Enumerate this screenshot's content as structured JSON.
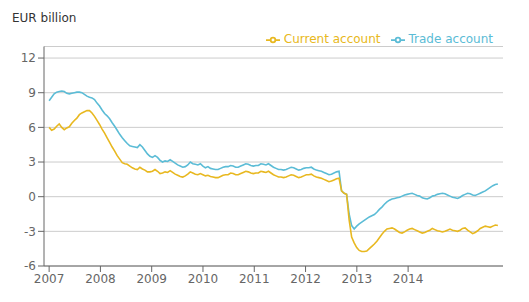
{
  "chart_data": {
    "type": "line",
    "ylabel": "EUR billion",
    "x": [
      2007,
      2007.0492,
      2007.0983,
      2007.1475,
      2007.1966,
      2007.2458,
      2007.2949,
      2007.3441,
      2007.3933,
      2007.4424,
      2007.4916,
      2007.5407,
      2007.5899,
      2007.639,
      2007.6882,
      2007.7374,
      2007.7865,
      2007.8357,
      2007.8848,
      2007.934,
      2007.9831,
      2008.0323,
      2008.0815,
      2008.1306,
      2008.1798,
      2008.2289,
      2008.2781,
      2008.3272,
      2008.3764,
      2008.4256,
      2008.4747,
      2008.5239,
      2008.573,
      2008.6222,
      2008.6713,
      2008.7205,
      2008.7697,
      2008.8188,
      2008.868,
      2008.9171,
      2008.9663,
      2009.0154,
      2009.0646,
      2009.1138,
      2009.1629,
      2009.2121,
      2009.2612,
      2009.3104,
      2009.3596,
      2009.4087,
      2009.4579,
      2009.507,
      2009.5562,
      2009.6053,
      2009.6545,
      2009.7037,
      2009.7528,
      2009.802,
      2009.8511,
      2009.9003,
      2009.9494,
      2009.9986,
      2010.0478,
      2010.0969,
      2010.1461,
      2010.1952,
      2010.2444,
      2010.2935,
      2010.3427,
      2010.3919,
      2010.441,
      2010.4902,
      2010.5393,
      2010.5885,
      2010.6376,
      2010.6868,
      2010.736,
      2010.7851,
      2010.8343,
      2010.8834,
      2010.9326,
      2010.9817,
      2011.0309,
      2011.0801,
      2011.1292,
      2011.1784,
      2011.2275,
      2011.2767,
      2011.3258,
      2011.375,
      2011.4242,
      2011.4733,
      2011.5225,
      2011.5716,
      2011.6208,
      2011.6699,
      2011.7191,
      2011.7683,
      2011.8174,
      2011.8666,
      2011.9157,
      2011.9649,
      2012.014,
      2012.0632,
      2012.1124,
      2012.1615,
      2012.2107,
      2012.2598,
      2012.309,
      2012.3581,
      2012.4073,
      2012.4565,
      2012.5056,
      2012.5548,
      2012.6039,
      2012.6531,
      2012.7022,
      2012.7514,
      2012.8006,
      2012.8497,
      2012.8989,
      2012.948,
      2012.9972,
      2013.0463,
      2013.0955,
      2013.1447,
      2013.1938,
      2013.243,
      2013.2921,
      2013.3413,
      2013.3904,
      2013.4396,
      2013.4888,
      2013.5379,
      2013.5871,
      2013.6362,
      2013.6854,
      2013.7346,
      2013.7837,
      2013.8329,
      2013.882,
      2013.9312,
      2013.9803,
      2014.0295,
      2014.0787,
      2014.1278,
      2014.177,
      2014.2261,
      2014.2753,
      2014.3244,
      2014.3736,
      2014.4228,
      2014.4719,
      2014.5211,
      2014.5702,
      2014.6194,
      2014.6685,
      2014.7177,
      2014.7669,
      2014.816,
      2014.8652,
      2014.9143,
      2014.9635,
      2015.0126,
      2015.0618,
      2015.111,
      2015.1601,
      2015.2093,
      2015.2584,
      2015.3076,
      2015.3567,
      2015.4059,
      2015.4551,
      2015.5042,
      2015.5534,
      2015.6025,
      2015.6517,
      2015.7008,
      2015.75
    ],
    "series": [
      {
        "name": "Trade account",
        "color": "#5BBCD6",
        "values": [
          8.3,
          8.6,
          8.9,
          9.05,
          9.1,
          9.15,
          9.1,
          8.95,
          8.9,
          8.95,
          9.0,
          9.05,
          9.05,
          9.0,
          8.85,
          8.7,
          8.6,
          8.55,
          8.4,
          8.1,
          7.85,
          7.5,
          7.2,
          7.0,
          6.75,
          6.4,
          6.1,
          5.75,
          5.4,
          5.1,
          4.85,
          4.6,
          4.4,
          4.35,
          4.3,
          4.25,
          4.5,
          4.3,
          4.0,
          3.7,
          3.5,
          3.4,
          3.55,
          3.4,
          3.15,
          3.0,
          3.1,
          3.05,
          3.2,
          3.05,
          2.9,
          2.75,
          2.65,
          2.55,
          2.6,
          2.75,
          3.0,
          2.85,
          2.8,
          2.75,
          2.85,
          2.65,
          2.5,
          2.6,
          2.45,
          2.4,
          2.35,
          2.35,
          2.45,
          2.55,
          2.6,
          2.6,
          2.7,
          2.65,
          2.55,
          2.55,
          2.65,
          2.75,
          2.85,
          2.8,
          2.7,
          2.65,
          2.7,
          2.7,
          2.85,
          2.8,
          2.75,
          2.85,
          2.7,
          2.55,
          2.45,
          2.35,
          2.35,
          2.3,
          2.35,
          2.45,
          2.55,
          2.5,
          2.4,
          2.3,
          2.35,
          2.45,
          2.5,
          2.5,
          2.55,
          2.4,
          2.3,
          2.25,
          2.2,
          2.1,
          2.0,
          1.9,
          1.95,
          2.05,
          2.15,
          2.2,
          0.5,
          0.3,
          0.2,
          -1.5,
          -2.5,
          -2.8,
          -2.55,
          -2.35,
          -2.2,
          -2.05,
          -1.9,
          -1.75,
          -1.65,
          -1.55,
          -1.35,
          -1.1,
          -0.9,
          -0.65,
          -0.45,
          -0.3,
          -0.2,
          -0.15,
          -0.1,
          -0.05,
          0.05,
          0.15,
          0.2,
          0.25,
          0.3,
          0.2,
          0.1,
          0.05,
          -0.1,
          -0.15,
          -0.2,
          -0.1,
          0.05,
          0.1,
          0.2,
          0.25,
          0.3,
          0.25,
          0.15,
          0.05,
          -0.05,
          -0.1,
          -0.15,
          -0.05,
          0.1,
          0.2,
          0.3,
          0.25,
          0.15,
          0.1,
          0.2,
          0.3,
          0.4,
          0.5,
          0.65,
          0.8,
          0.95,
          1.05,
          1.1
        ]
      },
      {
        "name": "Current account",
        "color": "#E8B820",
        "values": [
          6.0,
          5.75,
          5.85,
          6.1,
          6.3,
          6.0,
          5.8,
          5.95,
          6.05,
          6.35,
          6.6,
          6.8,
          7.1,
          7.25,
          7.35,
          7.45,
          7.45,
          7.25,
          6.95,
          6.6,
          6.25,
          5.85,
          5.5,
          5.1,
          4.7,
          4.3,
          3.95,
          3.55,
          3.25,
          2.95,
          2.85,
          2.8,
          2.65,
          2.5,
          2.4,
          2.35,
          2.55,
          2.4,
          2.3,
          2.15,
          2.15,
          2.2,
          2.35,
          2.2,
          2.0,
          2.05,
          2.15,
          2.1,
          2.25,
          2.1,
          1.95,
          1.85,
          1.75,
          1.7,
          1.8,
          1.95,
          2.15,
          2.05,
          1.95,
          1.9,
          2.0,
          1.9,
          1.8,
          1.85,
          1.75,
          1.7,
          1.65,
          1.65,
          1.75,
          1.85,
          1.9,
          1.9,
          2.05,
          2.0,
          1.9,
          1.9,
          2.0,
          2.1,
          2.2,
          2.15,
          2.05,
          2.0,
          2.05,
          2.05,
          2.2,
          2.15,
          2.1,
          2.2,
          2.05,
          1.9,
          1.8,
          1.7,
          1.7,
          1.65,
          1.7,
          1.8,
          1.9,
          1.85,
          1.75,
          1.65,
          1.7,
          1.8,
          1.9,
          1.9,
          1.95,
          1.8,
          1.7,
          1.65,
          1.6,
          1.5,
          1.4,
          1.3,
          1.35,
          1.45,
          1.55,
          1.6,
          0.5,
          0.3,
          0.2,
          -2.0,
          -3.5,
          -4.0,
          -4.4,
          -4.65,
          -4.75,
          -4.75,
          -4.7,
          -4.5,
          -4.3,
          -4.1,
          -3.85,
          -3.55,
          -3.25,
          -3.0,
          -2.8,
          -2.75,
          -2.7,
          -2.8,
          -2.95,
          -3.1,
          -3.15,
          -3.05,
          -2.9,
          -2.8,
          -2.75,
          -2.85,
          -2.95,
          -3.05,
          -3.15,
          -3.1,
          -3.0,
          -2.9,
          -2.75,
          -2.85,
          -2.95,
          -3.0,
          -3.05,
          -3.0,
          -2.9,
          -2.8,
          -2.9,
          -2.95,
          -3.0,
          -2.9,
          -2.75,
          -2.7,
          -2.9,
          -3.05,
          -3.2,
          -3.1,
          -2.95,
          -2.75,
          -2.65,
          -2.55,
          -2.6,
          -2.65,
          -2.55,
          -2.45,
          -2.5
        ]
      }
    ],
    "xlim": [
      2006.9,
      2015.85
    ],
    "xticks": [
      2007,
      2008,
      2009,
      2010,
      2011,
      2012,
      2013,
      2014
    ],
    "ylim": [
      -6,
      13
    ],
    "yticks": [
      -6,
      -3,
      0,
      3,
      6,
      9,
      12
    ],
    "grid": true,
    "legend": "upper right"
  }
}
